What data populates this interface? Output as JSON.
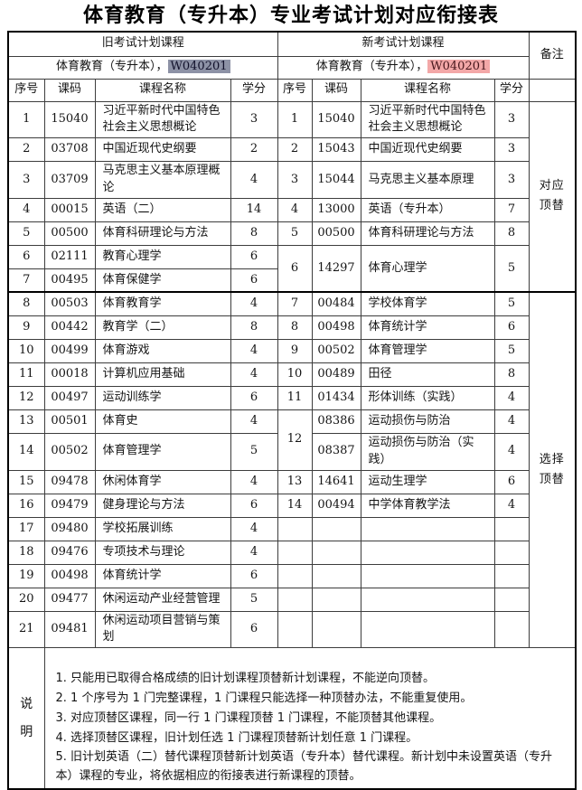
{
  "title": "体育教育（专升本）专业考试计划对应衔接表",
  "table": {
    "old_header": "旧考试计划课程",
    "new_header": "新考试计划课程",
    "remark_header": "备注",
    "old_subtitle": "体育教育（专升本），",
    "old_code": "W040201",
    "new_subtitle": "体育教育（专升本），",
    "new_code": "W040201",
    "column_headers": [
      "序号",
      "课码",
      "课程名称",
      "学分"
    ],
    "sections": [
      {
        "remark": "对应顶替",
        "rows": [
          {
            "old": {
              "seq": "1",
              "code": "15040",
              "name": "习近平新时代中国特色社会主义思想概论",
              "credit": "3"
            },
            "new": {
              "seq": "1",
              "code": "15040",
              "name": "习近平新时代中国特色社会主义思想概论",
              "credit": "3"
            }
          },
          {
            "old": {
              "seq": "2",
              "code": "03708",
              "name": "中国近现代史纲要",
              "credit": "2"
            },
            "new": {
              "seq": "2",
              "code": "15043",
              "name": "中国近现代史纲要",
              "credit": "3"
            }
          },
          {
            "old": {
              "seq": "3",
              "code": "03709",
              "name": "马克思主义基本原理概论",
              "credit": "4"
            },
            "new": {
              "seq": "3",
              "code": "15044",
              "name": "马克思主义基本原理",
              "credit": "3"
            }
          },
          {
            "old": {
              "seq": "4",
              "code": "00015",
              "name": "英语（二）",
              "credit": "14"
            },
            "new": {
              "seq": "4",
              "code": "13000",
              "name": "英语（专升本）",
              "credit": "7"
            }
          },
          {
            "old": {
              "seq": "5",
              "code": "00500",
              "name": "体育科研理论与方法",
              "credit": "8"
            },
            "new": {
              "seq": "5",
              "code": "00500",
              "name": "体育科研理论与方法",
              "credit": "8"
            }
          },
          {
            "old": {
              "seq": "6",
              "code": "02111",
              "name": "教育心理学",
              "credit": "6"
            },
            "new": {
              "seq": "6",
              "code": "14297",
              "name": "体育心理学",
              "credit": "5",
              "rowspan": 2
            }
          },
          {
            "old": {
              "seq": "7",
              "code": "00495",
              "name": "体育保健学",
              "credit": "6"
            },
            "new": null
          }
        ]
      },
      {
        "remark": "选择顶替",
        "rows": [
          {
            "old": {
              "seq": "8",
              "code": "00503",
              "name": "体育教育学",
              "credit": "4"
            },
            "new": {
              "seq": "7",
              "code": "00484",
              "name": "学校体育学",
              "credit": "5"
            }
          },
          {
            "old": {
              "seq": "9",
              "code": "00442",
              "name": "教育学（二）",
              "credit": "8"
            },
            "new": {
              "seq": "8",
              "code": "00498",
              "name": "体育统计学",
              "credit": "6"
            }
          },
          {
            "old": {
              "seq": "10",
              "code": "00499",
              "name": "体育游戏",
              "credit": "4"
            },
            "new": {
              "seq": "9",
              "code": "00502",
              "name": "体育管理学",
              "credit": "5"
            }
          },
          {
            "old": {
              "seq": "11",
              "code": "00018",
              "name": "计算机应用基础",
              "credit": "4"
            },
            "new": {
              "seq": "10",
              "code": "00489",
              "name": "田径",
              "credit": "8"
            }
          },
          {
            "old": {
              "seq": "12",
              "code": "00497",
              "name": "运动训练学",
              "credit": "6"
            },
            "new": {
              "seq": "11",
              "code": "01434",
              "name": "形体训练（实践）",
              "credit": "4"
            }
          },
          {
            "old": {
              "seq": "13",
              "code": "00501",
              "name": "体育史",
              "credit": "4"
            },
            "new": {
              "seq": "12",
              "seq_rowspan": 2,
              "code": "08386",
              "name": "运动损伤与防治",
              "credit": "4"
            }
          },
          {
            "old": {
              "seq": "14",
              "code": "00502",
              "name": "体育管理学",
              "credit": "5"
            },
            "new": {
              "code": "08387",
              "name": "运动损伤与防治（实践）",
              "credit": "4"
            }
          },
          {
            "old": {
              "seq": "15",
              "code": "09478",
              "name": "休闲体育学",
              "credit": "4"
            },
            "new": {
              "seq": "13",
              "code": "14641",
              "name": "运动生理学",
              "credit": "6"
            }
          },
          {
            "old": {
              "seq": "16",
              "code": "09479",
              "name": "健身理论与方法",
              "credit": "6"
            },
            "new": {
              "seq": "14",
              "code": "00494",
              "name": "中学体育教学法",
              "credit": "4"
            }
          },
          {
            "old": {
              "seq": "17",
              "code": "09480",
              "name": "学校拓展训练",
              "credit": "4"
            },
            "new": {
              "seq": "",
              "code": "",
              "name": "",
              "credit": ""
            }
          },
          {
            "old": {
              "seq": "18",
              "code": "09476",
              "name": "专项技术与理论",
              "credit": "4"
            },
            "new": {
              "seq": "",
              "code": "",
              "name": "",
              "credit": ""
            }
          },
          {
            "old": {
              "seq": "19",
              "code": "00498",
              "name": "体育统计学",
              "credit": "6"
            },
            "new": {
              "seq": "",
              "code": "",
              "name": "",
              "credit": ""
            }
          },
          {
            "old": {
              "seq": "20",
              "code": "09477",
              "name": "休闲运动产业经营管理",
              "credit": "5"
            },
            "new": {
              "seq": "",
              "code": "",
              "name": "",
              "credit": ""
            }
          },
          {
            "old": {
              "seq": "21",
              "code": "09481",
              "name": "休闲运动项目营销与策划",
              "credit": "6"
            },
            "new": {
              "seq": "",
              "code": "",
              "name": "",
              "credit": ""
            }
          }
        ]
      }
    ]
  },
  "notes": {
    "label": "说明",
    "items": [
      "1. 只能用已取得合格成绩的旧计划课程顶替新计划课程，不能逆向顶替。",
      "2. 1 个序号为 1 门完整课程，1 门课程只能选择一种顶替办法，不能重复使用。",
      "3. 对应顶替区课程，同一行 1 门课程顶替 1 门课程，不能顶替其他课程。",
      "4. 选择顶替区课程，旧计划任选 1 门课程顶替新计划任意 1 门课程。",
      "5. 旧计划英语（二）替代课程顶替新计划英语（专升本）替代课程。新计划中未设置英语（专升本）课程的专业，将依据相应的衔接表进行新课程的顶替。"
    ]
  },
  "colors": {
    "old_code_highlight": "#8d92a6",
    "new_code_highlight": "#f3a8a8",
    "new_code_text": "#46161b",
    "table_border": "#000000"
  }
}
